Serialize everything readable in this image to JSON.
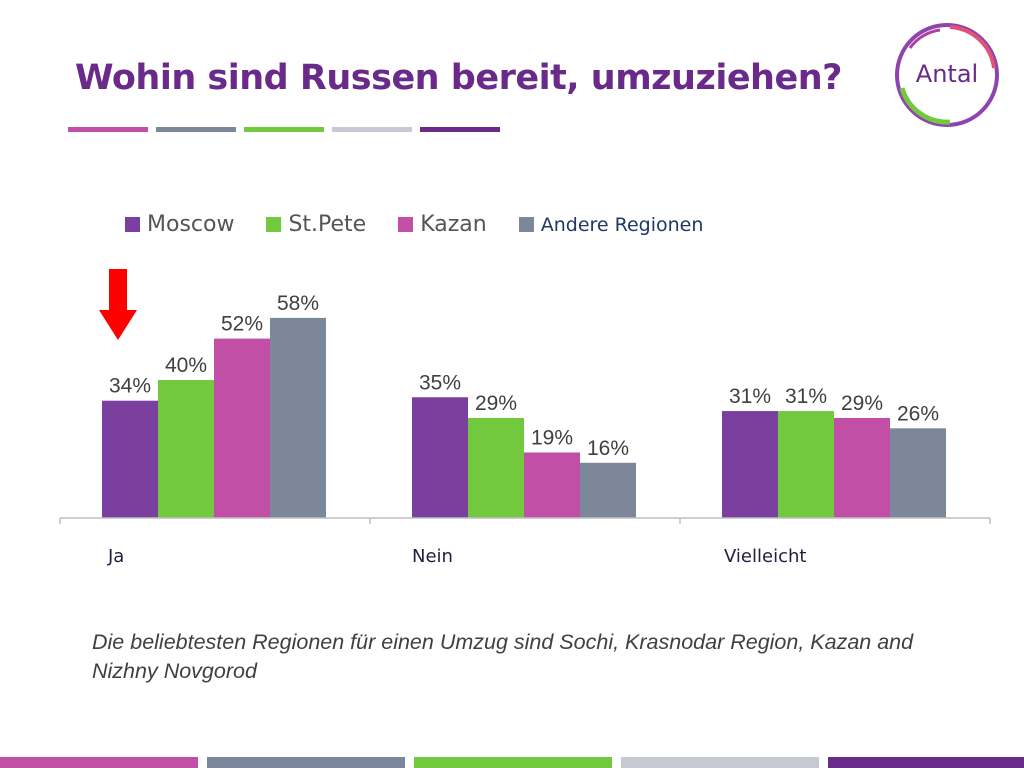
{
  "slide": {
    "title": "Wohin sind Russen bereit, umzuziehen?",
    "caption": "Die beliebtesten Regionen für einen Umzug sind Sochi, Krasnodar Region, Kazan and Nizhny Novgorod",
    "logo_text": "Antal"
  },
  "colors": {
    "title": "#6a2a8a",
    "moscow": "#7b3fa0",
    "stpete": "#72c93e",
    "kazan": "#c24fa6",
    "andere": "#7d879a",
    "arrow": "#ff0000",
    "rule_1": "#c24fa6",
    "rule_2": "#7d879a",
    "rule_3": "#72c93e",
    "rule_4": "#c6c9d2",
    "rule_5": "#6a2a8a"
  },
  "chart_data": {
    "type": "bar",
    "categories": [
      "Ja",
      "Nein",
      "Vielleicht"
    ],
    "series": [
      {
        "name": "Moscow",
        "values": [
          34,
          35,
          31
        ]
      },
      {
        "name": "St.Pete",
        "values": [
          40,
          29,
          31
        ]
      },
      {
        "name": "Kazan",
        "values": [
          52,
          19,
          29
        ]
      },
      {
        "name": "Andere Regionen",
        "values": [
          58,
          16,
          26
        ]
      }
    ],
    "value_suffix": "%",
    "ylim": [
      0,
      70
    ],
    "grid": false,
    "legend_position": "top",
    "annotation": "red-arrow-down-on-Ja"
  }
}
